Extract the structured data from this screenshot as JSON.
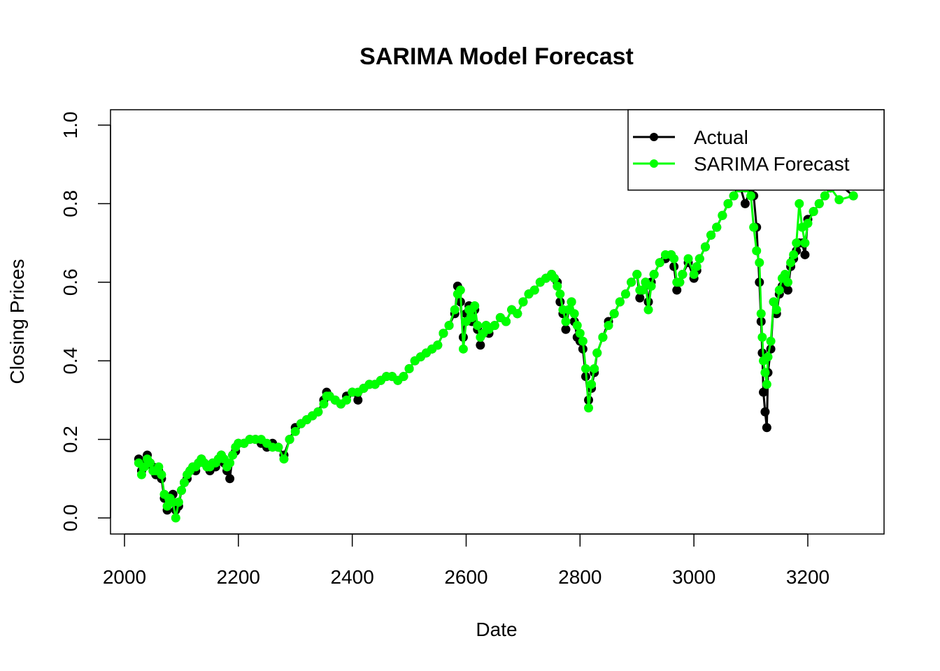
{
  "chart_data": {
    "type": "line",
    "title": "SARIMA Model Forecast",
    "xlabel": "Date",
    "ylabel": "Closing Prices",
    "xlim": [
      2000,
      3300
    ],
    "ylim": [
      0.0,
      1.0
    ],
    "x_ticks": [
      2000,
      2200,
      2400,
      2600,
      2800,
      3000,
      3200
    ],
    "y_ticks": [
      0.0,
      0.2,
      0.4,
      0.6,
      0.8,
      1.0
    ],
    "x_tick_labels": [
      "2000",
      "2200",
      "2400",
      "2600",
      "2800",
      "3000",
      "3200"
    ],
    "y_tick_labels": [
      "0.0",
      "0.2",
      "0.4",
      "0.6",
      "0.8",
      "1.0"
    ],
    "legend_position": "top-right",
    "colors": {
      "actual": "#000000",
      "forecast": "#00ff00",
      "connector": "#0000ff"
    },
    "series": [
      {
        "name": "Actual",
        "color": "#000000",
        "x": [
          2025,
          2030,
          2035,
          2040,
          2045,
          2050,
          2055,
          2060,
          2065,
          2070,
          2075,
          2080,
          2085,
          2090,
          2095,
          2100,
          2105,
          2110,
          2115,
          2120,
          2125,
          2130,
          2135,
          2140,
          2145,
          2150,
          2155,
          2160,
          2165,
          2170,
          2175,
          2180,
          2185,
          2190,
          2195,
          2200,
          2210,
          2220,
          2230,
          2240,
          2250,
          2260,
          2270,
          2280,
          2290,
          2300,
          2310,
          2320,
          2330,
          2340,
          2350,
          2355,
          2360,
          2370,
          2380,
          2390,
          2400,
          2410,
          2420,
          2430,
          2440,
          2450,
          2460,
          2470,
          2480,
          2490,
          2500,
          2510,
          2520,
          2530,
          2540,
          2550,
          2560,
          2570,
          2580,
          2585,
          2590,
          2595,
          2600,
          2605,
          2610,
          2615,
          2620,
          2625,
          2630,
          2635,
          2640,
          2650,
          2660,
          2670,
          2680,
          2690,
          2700,
          2710,
          2720,
          2730,
          2740,
          2750,
          2755,
          2760,
          2765,
          2770,
          2775,
          2780,
          2785,
          2790,
          2795,
          2800,
          2805,
          2810,
          2815,
          2820,
          2825,
          2830,
          2840,
          2850,
          2860,
          2870,
          2880,
          2890,
          2900,
          2905,
          2910,
          2915,
          2920,
          2925,
          2930,
          2940,
          2950,
          2960,
          2965,
          2970,
          2975,
          2980,
          2990,
          3000,
          3005,
          3010,
          3020,
          3030,
          3040,
          3050,
          3060,
          3070,
          3080,
          3090,
          3100,
          3105,
          3110,
          3115,
          3118,
          3120,
          3122,
          3125,
          3128,
          3130,
          3135,
          3140,
          3145,
          3150,
          3155,
          3160,
          3165,
          3170,
          3175,
          3180,
          3185,
          3190,
          3195,
          3200,
          3210,
          3220,
          3230,
          3240,
          3255,
          3280
        ],
        "y": [
          0.15,
          0.12,
          0.14,
          0.16,
          0.14,
          0.13,
          0.11,
          0.12,
          0.1,
          0.05,
          0.02,
          0.04,
          0.06,
          0.02,
          0.03,
          0.07,
          0.09,
          0.1,
          0.12,
          0.13,
          0.12,
          0.14,
          0.15,
          0.14,
          0.13,
          0.12,
          0.14,
          0.13,
          0.15,
          0.16,
          0.14,
          0.12,
          0.1,
          0.16,
          0.17,
          0.19,
          0.19,
          0.2,
          0.2,
          0.19,
          0.18,
          0.19,
          0.18,
          0.16,
          0.2,
          0.23,
          0.24,
          0.25,
          0.26,
          0.27,
          0.3,
          0.32,
          0.31,
          0.3,
          0.29,
          0.31,
          0.32,
          0.3,
          0.33,
          0.34,
          0.34,
          0.35,
          0.36,
          0.36,
          0.35,
          0.36,
          0.38,
          0.4,
          0.41,
          0.42,
          0.43,
          0.44,
          0.47,
          0.49,
          0.52,
          0.59,
          0.55,
          0.46,
          0.52,
          0.54,
          0.5,
          0.53,
          0.48,
          0.44,
          0.47,
          0.49,
          0.47,
          0.49,
          0.51,
          0.5,
          0.53,
          0.52,
          0.55,
          0.57,
          0.58,
          0.6,
          0.61,
          0.62,
          0.61,
          0.6,
          0.55,
          0.52,
          0.48,
          0.53,
          0.55,
          0.5,
          0.46,
          0.45,
          0.43,
          0.36,
          0.3,
          0.33,
          0.37,
          0.42,
          0.46,
          0.5,
          0.52,
          0.55,
          0.57,
          0.6,
          0.62,
          0.56,
          0.58,
          0.6,
          0.55,
          0.6,
          0.62,
          0.65,
          0.66,
          0.67,
          0.64,
          0.58,
          0.6,
          0.62,
          0.65,
          0.61,
          0.63,
          0.66,
          0.69,
          0.72,
          0.74,
          0.77,
          0.8,
          0.82,
          0.85,
          0.8,
          0.84,
          0.82,
          0.74,
          0.6,
          0.5,
          0.42,
          0.32,
          0.27,
          0.23,
          0.37,
          0.43,
          0.55,
          0.52,
          0.57,
          0.59,
          0.6,
          0.58,
          0.64,
          0.66,
          0.68,
          0.7,
          0.7,
          0.67,
          0.76,
          0.78,
          0.8,
          0.82,
          0.84,
          0.85,
          0.82
        ]
      },
      {
        "name": "SARIMA Forecast",
        "color": "#00ff00",
        "x": [
          2025,
          2030,
          2035,
          2040,
          2045,
          2050,
          2055,
          2060,
          2065,
          2070,
          2075,
          2080,
          2085,
          2090,
          2095,
          2100,
          2105,
          2110,
          2115,
          2120,
          2125,
          2130,
          2135,
          2140,
          2145,
          2150,
          2155,
          2160,
          2165,
          2170,
          2175,
          2180,
          2185,
          2190,
          2195,
          2200,
          2210,
          2220,
          2230,
          2240,
          2250,
          2260,
          2270,
          2280,
          2290,
          2300,
          2310,
          2320,
          2330,
          2340,
          2350,
          2355,
          2360,
          2370,
          2380,
          2390,
          2400,
          2410,
          2420,
          2430,
          2440,
          2450,
          2460,
          2470,
          2480,
          2490,
          2500,
          2510,
          2520,
          2530,
          2540,
          2550,
          2560,
          2570,
          2580,
          2585,
          2590,
          2595,
          2600,
          2605,
          2610,
          2615,
          2620,
          2625,
          2630,
          2635,
          2640,
          2650,
          2660,
          2670,
          2680,
          2690,
          2700,
          2710,
          2720,
          2730,
          2740,
          2750,
          2755,
          2760,
          2765,
          2770,
          2775,
          2780,
          2785,
          2790,
          2795,
          2800,
          2805,
          2810,
          2815,
          2820,
          2825,
          2830,
          2840,
          2850,
          2860,
          2870,
          2880,
          2890,
          2900,
          2905,
          2910,
          2915,
          2920,
          2925,
          2930,
          2940,
          2950,
          2960,
          2965,
          2970,
          2975,
          2980,
          2990,
          3000,
          3005,
          3010,
          3020,
          3030,
          3040,
          3050,
          3060,
          3070,
          3080,
          3090,
          3100,
          3105,
          3110,
          3115,
          3118,
          3120,
          3122,
          3125,
          3128,
          3130,
          3135,
          3140,
          3145,
          3150,
          3155,
          3160,
          3165,
          3170,
          3175,
          3180,
          3185,
          3190,
          3195,
          3200,
          3210,
          3220,
          3230,
          3240,
          3255,
          3280
        ],
        "y": [
          0.14,
          0.11,
          0.13,
          0.15,
          0.14,
          0.12,
          0.12,
          0.13,
          0.11,
          0.06,
          0.03,
          0.05,
          0.04,
          0.0,
          0.04,
          0.07,
          0.09,
          0.11,
          0.12,
          0.13,
          0.13,
          0.14,
          0.15,
          0.14,
          0.13,
          0.13,
          0.14,
          0.14,
          0.15,
          0.16,
          0.15,
          0.13,
          0.14,
          0.16,
          0.18,
          0.19,
          0.19,
          0.2,
          0.2,
          0.2,
          0.19,
          0.18,
          0.18,
          0.15,
          0.2,
          0.22,
          0.24,
          0.25,
          0.26,
          0.27,
          0.29,
          0.31,
          0.31,
          0.3,
          0.29,
          0.3,
          0.32,
          0.32,
          0.33,
          0.34,
          0.34,
          0.35,
          0.36,
          0.36,
          0.35,
          0.36,
          0.38,
          0.4,
          0.41,
          0.42,
          0.43,
          0.44,
          0.47,
          0.49,
          0.53,
          0.57,
          0.58,
          0.43,
          0.5,
          0.53,
          0.51,
          0.54,
          0.49,
          0.46,
          0.47,
          0.49,
          0.48,
          0.49,
          0.51,
          0.5,
          0.53,
          0.52,
          0.55,
          0.57,
          0.58,
          0.6,
          0.61,
          0.62,
          0.61,
          0.59,
          0.57,
          0.53,
          0.5,
          0.53,
          0.55,
          0.52,
          0.49,
          0.47,
          0.45,
          0.38,
          0.28,
          0.34,
          0.38,
          0.42,
          0.46,
          0.49,
          0.52,
          0.55,
          0.57,
          0.6,
          0.62,
          0.58,
          0.58,
          0.6,
          0.53,
          0.59,
          0.62,
          0.65,
          0.67,
          0.67,
          0.66,
          0.6,
          0.6,
          0.62,
          0.66,
          0.62,
          0.64,
          0.66,
          0.69,
          0.72,
          0.74,
          0.77,
          0.8,
          0.82,
          0.84,
          0.84,
          0.82,
          0.74,
          0.68,
          0.65,
          0.52,
          0.46,
          0.4,
          0.37,
          0.34,
          0.41,
          0.45,
          0.55,
          0.53,
          0.58,
          0.61,
          0.62,
          0.6,
          0.65,
          0.67,
          0.7,
          0.8,
          0.74,
          0.7,
          0.75,
          0.78,
          0.8,
          0.82,
          0.84,
          0.81,
          0.82
        ]
      }
    ]
  }
}
